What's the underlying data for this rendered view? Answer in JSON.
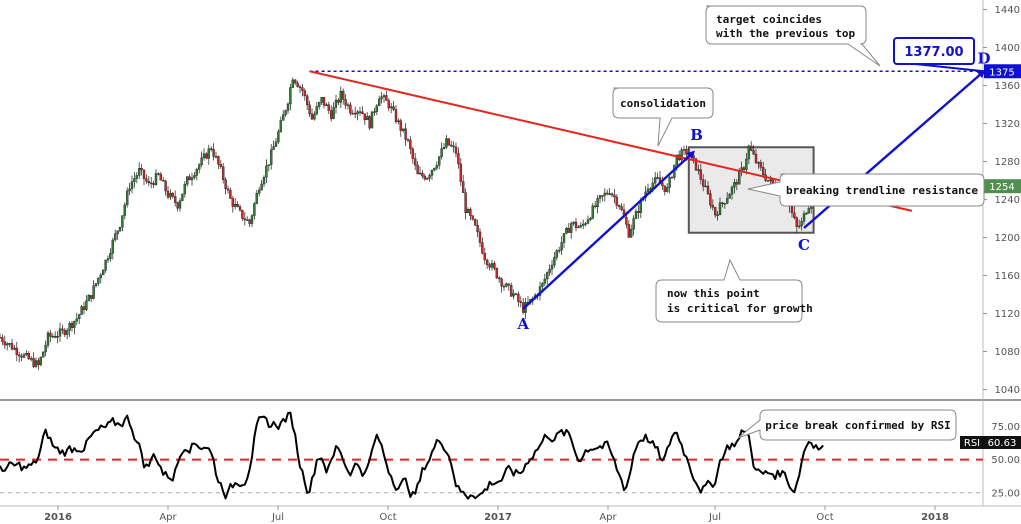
{
  "chart_data": [
    {
      "type": "candlestick",
      "series_name": "",
      "x_ticks": [
        "2016",
        "Apr",
        "Jul",
        "Oct",
        "2017",
        "Apr",
        "Jul",
        "Oct",
        "2018"
      ],
      "y_ticks": [
        1040,
        1080,
        1120,
        1160,
        1200,
        1240,
        1280,
        1320,
        1360,
        1400,
        1440
      ],
      "ylim": [
        1030,
        1450
      ],
      "price_path": [
        [
          0,
          1095
        ],
        [
          5,
          1085
        ],
        [
          10,
          1075
        ],
        [
          16,
          1065
        ],
        [
          20,
          1095
        ],
        [
          26,
          1100
        ],
        [
          32,
          1115
        ],
        [
          38,
          1140
        ],
        [
          44,
          1175
        ],
        [
          50,
          1215
        ],
        [
          54,
          1255
        ],
        [
          58,
          1270
        ],
        [
          62,
          1255
        ],
        [
          66,
          1265
        ],
        [
          70,
          1245
        ],
        [
          74,
          1235
        ],
        [
          78,
          1260
        ],
        [
          84,
          1280
        ],
        [
          88,
          1295
        ],
        [
          92,
          1270
        ],
        [
          96,
          1240
        ],
        [
          100,
          1225
        ],
        [
          104,
          1215
        ],
        [
          108,
          1255
        ],
        [
          112,
          1280
        ],
        [
          116,
          1310
        ],
        [
          120,
          1345
        ],
        [
          122,
          1370
        ],
        [
          126,
          1355
        ],
        [
          130,
          1325
        ],
        [
          134,
          1345
        ],
        [
          138,
          1330
        ],
        [
          142,
          1350
        ],
        [
          146,
          1335
        ],
        [
          150,
          1335
        ],
        [
          154,
          1320
        ],
        [
          158,
          1350
        ],
        [
          162,
          1340
        ],
        [
          166,
          1320
        ],
        [
          170,
          1300
        ],
        [
          174,
          1265
        ],
        [
          178,
          1265
        ],
        [
          182,
          1280
        ],
        [
          186,
          1300
        ],
        [
          190,
          1290
        ],
        [
          194,
          1230
        ],
        [
          198,
          1210
        ],
        [
          202,
          1180
        ],
        [
          206,
          1165
        ],
        [
          210,
          1150
        ],
        [
          214,
          1140
        ],
        [
          218,
          1125
        ],
        [
          222,
          1135
        ],
        [
          226,
          1150
        ],
        [
          230,
          1175
        ],
        [
          234,
          1195
        ],
        [
          238,
          1215
        ],
        [
          242,
          1210
        ],
        [
          246,
          1225
        ],
        [
          250,
          1240
        ],
        [
          254,
          1250
        ],
        [
          258,
          1235
        ],
        [
          260,
          1220
        ],
        [
          262,
          1205
        ],
        [
          266,
          1230
        ],
        [
          270,
          1255
        ],
        [
          274,
          1260
        ],
        [
          278,
          1250
        ],
        [
          282,
          1285
        ],
        [
          286,
          1290
        ],
        [
          290,
          1275
        ],
        [
          294,
          1250
        ],
        [
          298,
          1225
        ],
        [
          302,
          1240
        ],
        [
          306,
          1255
        ],
        [
          310,
          1275
        ],
        [
          312,
          1295
        ],
        [
          316,
          1275
        ],
        [
          320,
          1260
        ],
        [
          324,
          1250
        ],
        [
          328,
          1240
        ],
        [
          330,
          1225
        ],
        [
          332,
          1210
        ],
        [
          334,
          1215
        ],
        [
          336,
          1230
        ],
        [
          340,
          1250
        ],
        [
          343,
          1254
        ]
      ],
      "current_price": 1254,
      "resistance_level": 1375,
      "target_value": 1377.0,
      "target_label": "1377.00",
      "pattern_points": [
        {
          "label": "A",
          "t": 218,
          "price": 1125
        },
        {
          "label": "B",
          "t": 289,
          "price": 1290
        },
        {
          "label": "C",
          "t": 335,
          "price": 1210
        },
        {
          "label": "D",
          "t": 410,
          "price": 1375
        }
      ],
      "trendline": {
        "from": [
          129,
          1375
        ],
        "to": [
          380,
          1228
        ]
      },
      "consolidation_box": {
        "t_start": 287,
        "t_end": 339,
        "price_low": 1205,
        "price_high": 1295
      },
      "annotations": [
        "target coincides\nwith the previous top",
        "consolidation",
        "breaking trendline resistance",
        "now this point\nis critical for growth"
      ]
    },
    {
      "type": "line",
      "series_name": "RSI",
      "y_ticks": [
        25,
        50,
        75
      ],
      "ylim": [
        15,
        95
      ],
      "current_value": 60.63,
      "current_label": "60.63",
      "reference_level": 50,
      "annotation": "price break confirmed by RSI"
    }
  ],
  "labels": {
    "current_price_tag": "1254",
    "resistance_tag": "1375",
    "target_tag": "1377.00",
    "rsi_tag": "RSI",
    "rsi_value_tag": "60.63"
  },
  "colors": {
    "up_candle": "#2e7d32",
    "down_candle": "#c62828",
    "trendline": "#e8241e",
    "pattern": "#1010d0",
    "rsi_line": "#000000",
    "rsi_ref": "#e8241e"
  }
}
